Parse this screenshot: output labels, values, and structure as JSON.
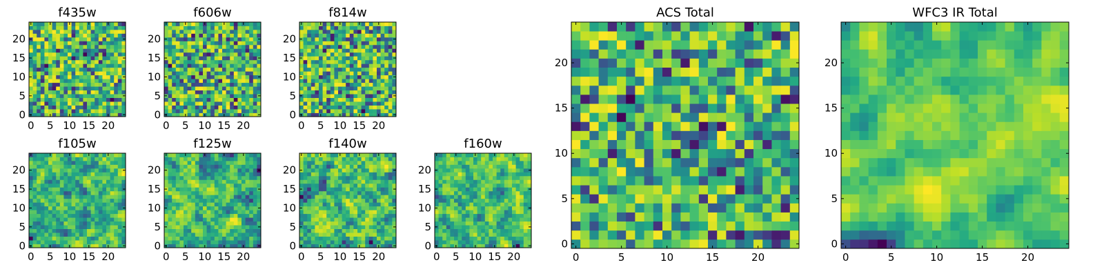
{
  "figure": {
    "background": "#ffffff",
    "colormap": "viridis"
  },
  "chart_data": [
    {
      "type": "heatmap",
      "title": "f435w",
      "size": 25,
      "seed": 11,
      "smooth": 0,
      "xticks": [
        0,
        5,
        10,
        15,
        20
      ],
      "yticks": [
        0,
        5,
        10,
        15,
        20
      ],
      "xlim": [
        0,
        25
      ],
      "ylim": [
        0,
        25
      ]
    },
    {
      "type": "heatmap",
      "title": "f606w",
      "size": 25,
      "seed": 23,
      "smooth": 0,
      "xticks": [
        0,
        5,
        10,
        15,
        20
      ],
      "yticks": [
        0,
        5,
        10,
        15,
        20
      ],
      "xlim": [
        0,
        25
      ],
      "ylim": [
        0,
        25
      ]
    },
    {
      "type": "heatmap",
      "title": "f814w",
      "size": 25,
      "seed": 37,
      "smooth": 0,
      "xticks": [
        0,
        5,
        10,
        15,
        20
      ],
      "yticks": [
        0,
        5,
        10,
        15,
        20
      ],
      "xlim": [
        0,
        25
      ],
      "ylim": [
        0,
        25
      ]
    },
    {
      "type": "heatmap",
      "title": "f105w",
      "size": 25,
      "seed": 41,
      "smooth": 1,
      "xticks": [
        0,
        5,
        10,
        15,
        20
      ],
      "yticks": [
        0,
        5,
        10,
        15,
        20
      ],
      "xlim": [
        0,
        25
      ],
      "ylim": [
        0,
        25
      ]
    },
    {
      "type": "heatmap",
      "title": "f125w",
      "size": 25,
      "seed": 53,
      "smooth": 1,
      "xticks": [
        0,
        5,
        10,
        15,
        20
      ],
      "yticks": [
        0,
        5,
        10,
        15,
        20
      ],
      "xlim": [
        0,
        25
      ],
      "ylim": [
        0,
        25
      ]
    },
    {
      "type": "heatmap",
      "title": "f140w",
      "size": 25,
      "seed": 67,
      "smooth": 1,
      "xticks": [
        0,
        5,
        10,
        15,
        20
      ],
      "yticks": [
        0,
        5,
        10,
        15,
        20
      ],
      "xlim": [
        0,
        25
      ],
      "ylim": [
        0,
        25
      ]
    },
    {
      "type": "heatmap",
      "title": "f160w",
      "size": 25,
      "seed": 79,
      "smooth": 1,
      "xticks": [
        0,
        5,
        10,
        15,
        20
      ],
      "yticks": [
        0,
        5,
        10,
        15,
        20
      ],
      "xlim": [
        0,
        25
      ],
      "ylim": [
        0,
        25
      ]
    },
    {
      "type": "heatmap",
      "title": "ACS Total",
      "size": 25,
      "seed": 83,
      "smooth": 0,
      "xticks": [
        0,
        5,
        10,
        15,
        20
      ],
      "yticks": [
        0,
        5,
        10,
        15,
        20
      ],
      "xlim": [
        0,
        25
      ],
      "ylim": [
        0,
        25
      ]
    },
    {
      "type": "heatmap",
      "title": "WFC3 IR Total",
      "size": 25,
      "seed": 97,
      "smooth": 2,
      "xticks": [
        0,
        5,
        10,
        15,
        20
      ],
      "yticks": [
        0,
        5,
        10,
        15,
        20
      ],
      "xlim": [
        0,
        25
      ],
      "ylim": [
        0,
        25
      ]
    }
  ]
}
